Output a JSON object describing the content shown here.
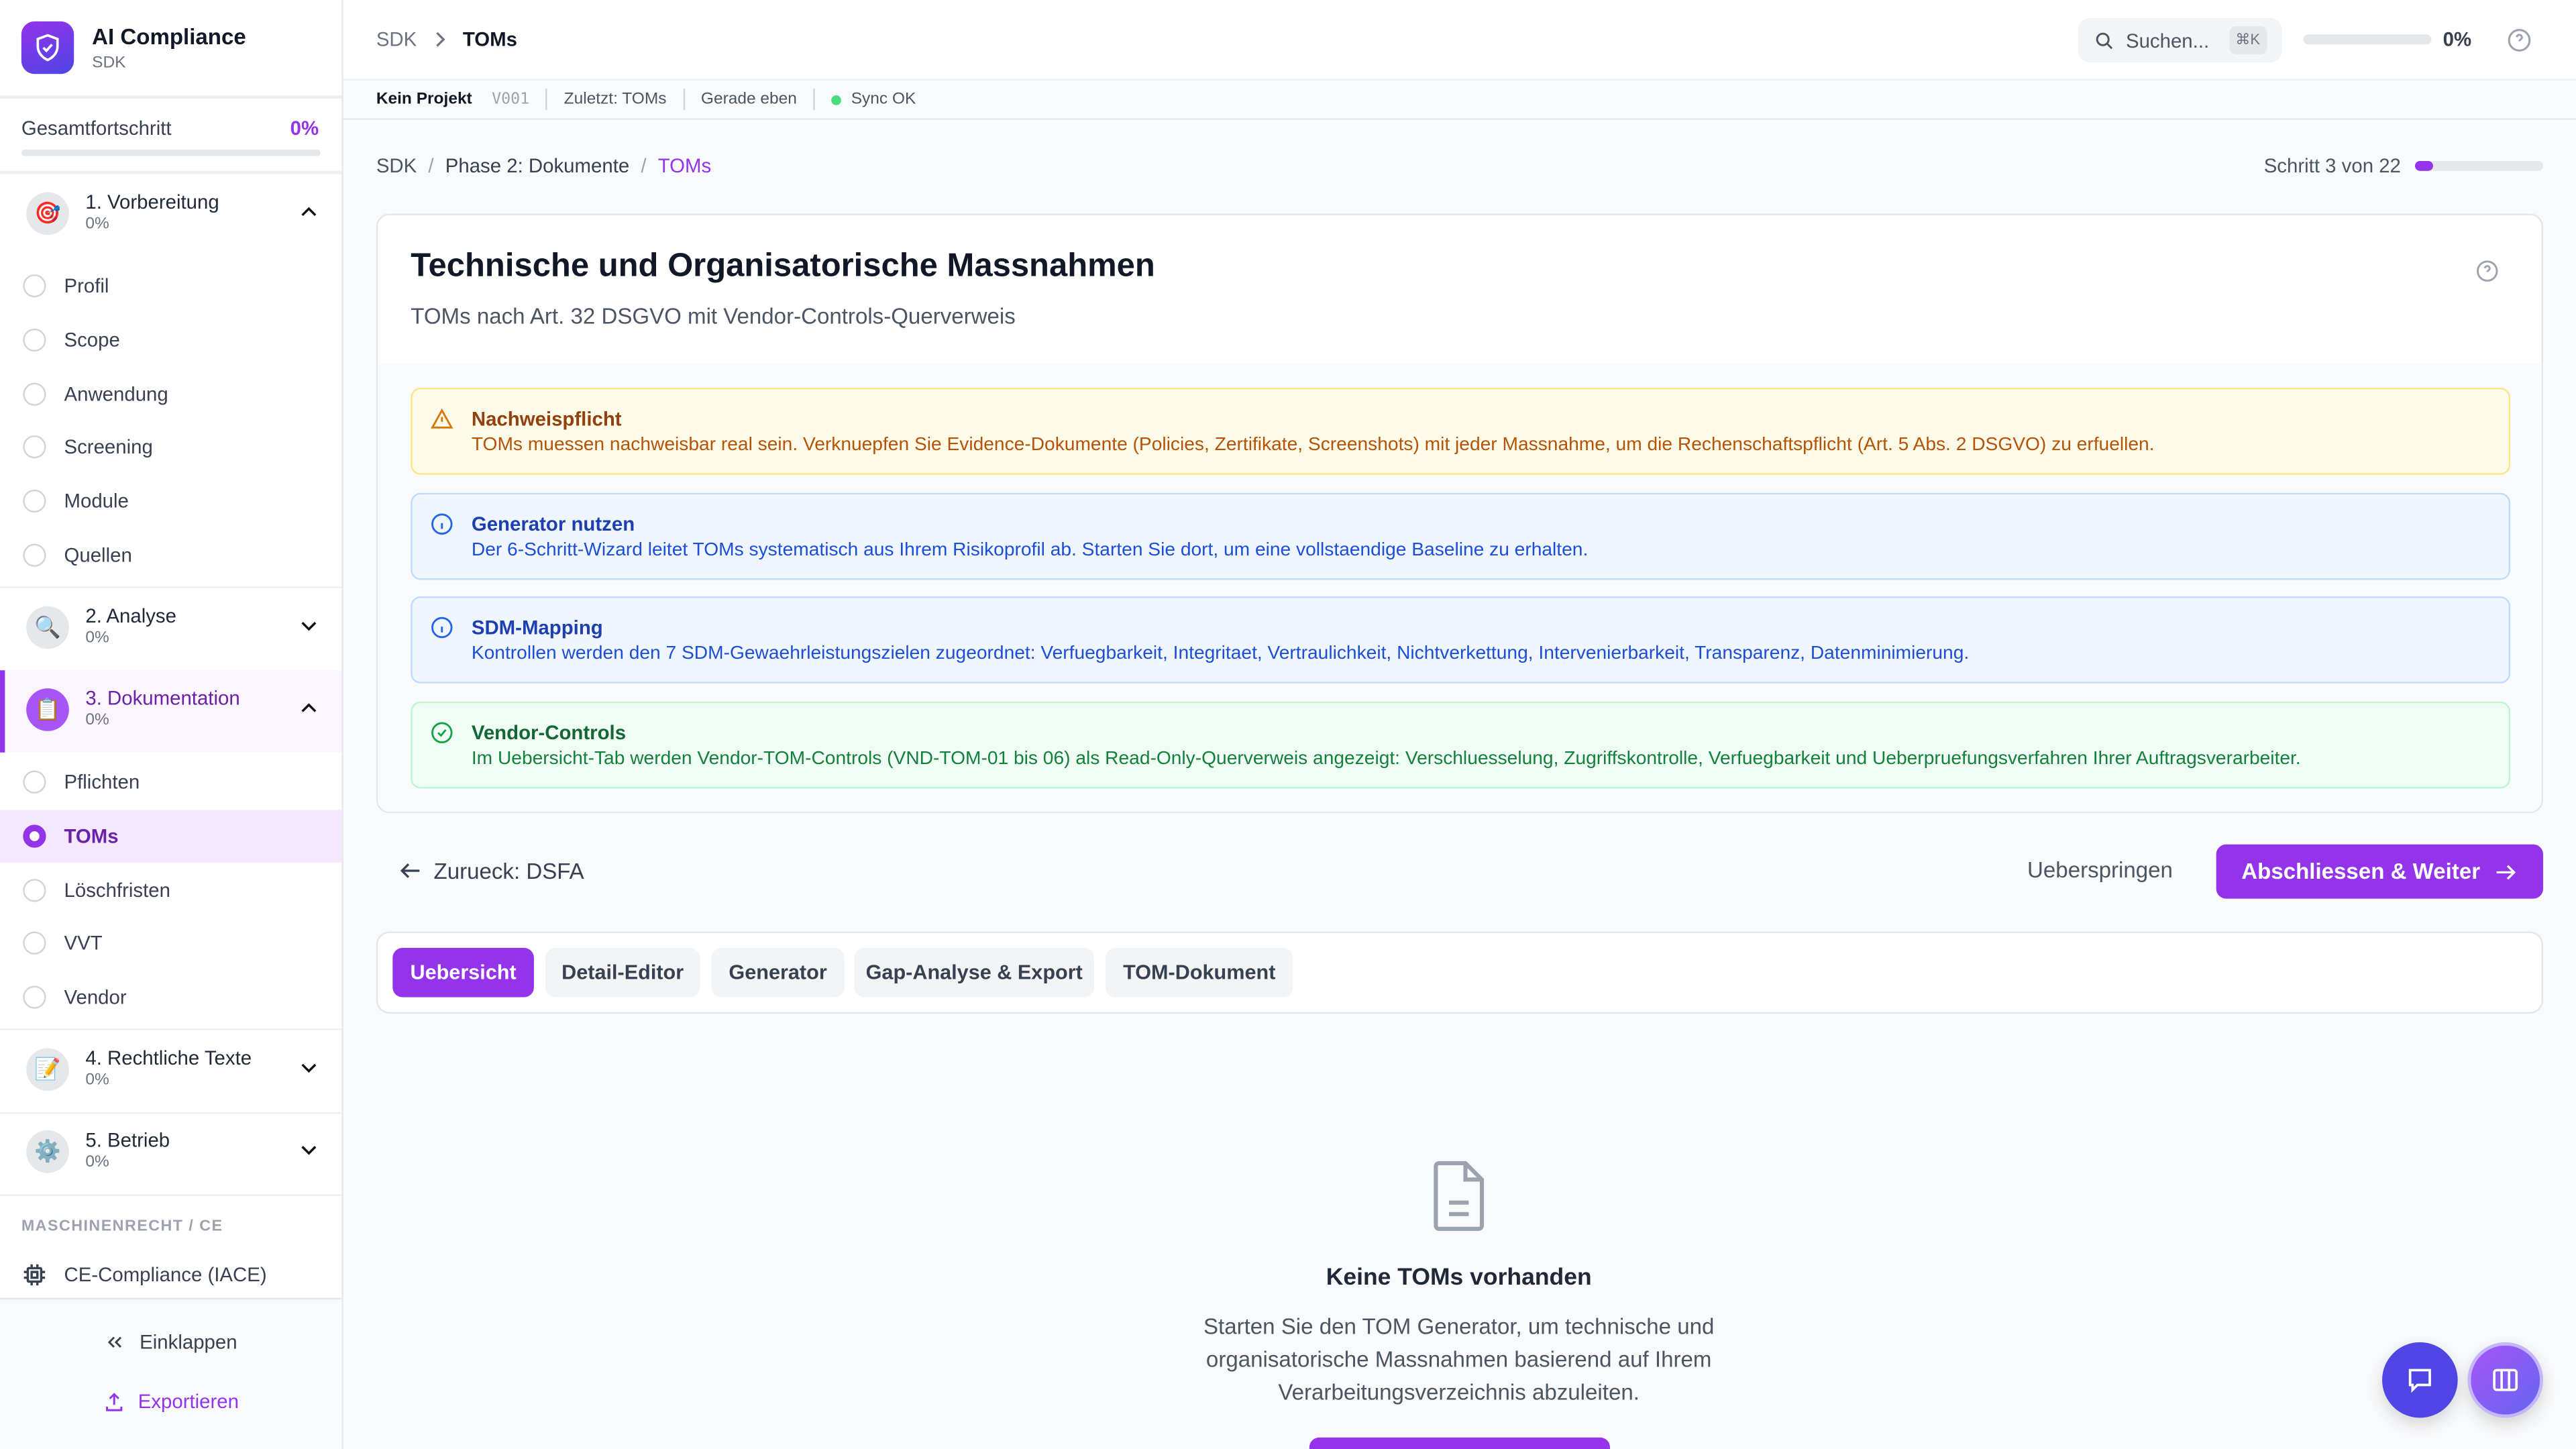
{
  "app": {
    "title": "AI Compliance",
    "subtitle": "SDK"
  },
  "sidebar": {
    "overall_label": "Gesamtfortschritt",
    "overall_value": "0%",
    "overall_progress": 0,
    "sections": [
      {
        "label": "1. Vorbereitung",
        "progress": "0%",
        "icon": "target-emoji",
        "expanded": true,
        "items": [
          "Profil",
          "Scope",
          "Anwendung",
          "Screening",
          "Module",
          "Quellen"
        ]
      },
      {
        "label": "2. Analyse",
        "progress": "0%",
        "icon": "magnifier-emoji",
        "expanded": false
      },
      {
        "label": "3. Dokumentation",
        "progress": "0%",
        "icon": "clipboard-emoji",
        "expanded": true,
        "active": true,
        "items": [
          "Pflichten",
          "TOMs",
          "Löschfristen",
          "VVT",
          "Vendor"
        ],
        "active_item": "TOMs"
      },
      {
        "label": "4. Rechtliche Texte",
        "progress": "0%",
        "icon": "memo-emoji",
        "expanded": false
      },
      {
        "label": "5. Betrieb",
        "progress": "0%",
        "icon": "gear-emoji",
        "expanded": false
      }
    ],
    "group_label": "MASCHINENRECHT / CE",
    "ce_item": "CE-Compliance (IACE)",
    "collapse_label": "Einklappen",
    "export_label": "Exportieren"
  },
  "header": {
    "breadcrumb": [
      "SDK",
      "TOMs"
    ],
    "search_placeholder": "Suchen...",
    "search_shortcut": "⌘K",
    "progress_value": "0%",
    "progress": 0
  },
  "statusbar": {
    "project": "Kein Projekt",
    "version": "V001",
    "last": "Zuletzt: TOMs",
    "time": "Gerade eben",
    "sync": "Sync OK",
    "sync_color": "#4ade80"
  },
  "page": {
    "breadcrumb": [
      "SDK",
      "Phase 2: Dokumente",
      "TOMs"
    ],
    "step_label": "Schritt 3 von 22",
    "step_progress": 0.136,
    "title": "Technische und Organisatorische Massnahmen",
    "subtitle": "TOMs nach Art. 32 DSGVO mit Vendor-Controls-Querverweis",
    "alerts": [
      {
        "type": "warning",
        "title": "Nachweispflicht",
        "text": "TOMs muessen nachweisbar real sein. Verknuepfen Sie Evidence-Dokumente (Policies, Zertifikate, Screenshots) mit jeder Massnahme, um die Rechenschaftspflicht (Art. 5 Abs. 2 DSGVO) zu erfuellen."
      },
      {
        "type": "info",
        "title": "Generator nutzen",
        "text": "Der 6-Schritt-Wizard leitet TOMs systematisch aus Ihrem Risikoprofil ab. Starten Sie dort, um eine vollstaendige Baseline zu erhalten."
      },
      {
        "type": "info",
        "title": "SDM-Mapping",
        "text": "Kontrollen werden den 7 SDM-Gewaehrleistungszielen zugeordnet: Verfuegbarkeit, Integritaet, Vertraulichkeit, Nichtverkettung, Intervenierbarkeit, Transparenz, Datenminimierung."
      },
      {
        "type": "success",
        "title": "Vendor-Controls",
        "text": "Im Uebersicht-Tab werden Vendor-TOM-Controls (VND-TOM-01 bis 06) als Read-Only-Querverweis angezeigt: Verschluesselung, Zugriffskontrolle, Verfuegbarkeit und Ueberpruefungsverfahren Ihrer Auftragsverarbeiter."
      }
    ],
    "back_label": "Zurueck: DSFA",
    "skip_label": "Ueberspringen",
    "next_label": "Abschliessen & Weiter",
    "tabs": [
      "Uebersicht",
      "Detail-Editor",
      "Generator",
      "Gap-Analyse & Export",
      "TOM-Dokument"
    ],
    "active_tab": "Uebersicht",
    "empty": {
      "title": "Keine TOMs vorhanden",
      "text": [
        "Starten Sie den TOM Generator, um technische und",
        "organisatorische Massnahmen basierend auf Ihrem",
        "Verarbeitungsverzeichnis abzuleiten."
      ]
    }
  },
  "colors": {
    "accent": "#9333ea",
    "indigo": "#4f46e5"
  }
}
